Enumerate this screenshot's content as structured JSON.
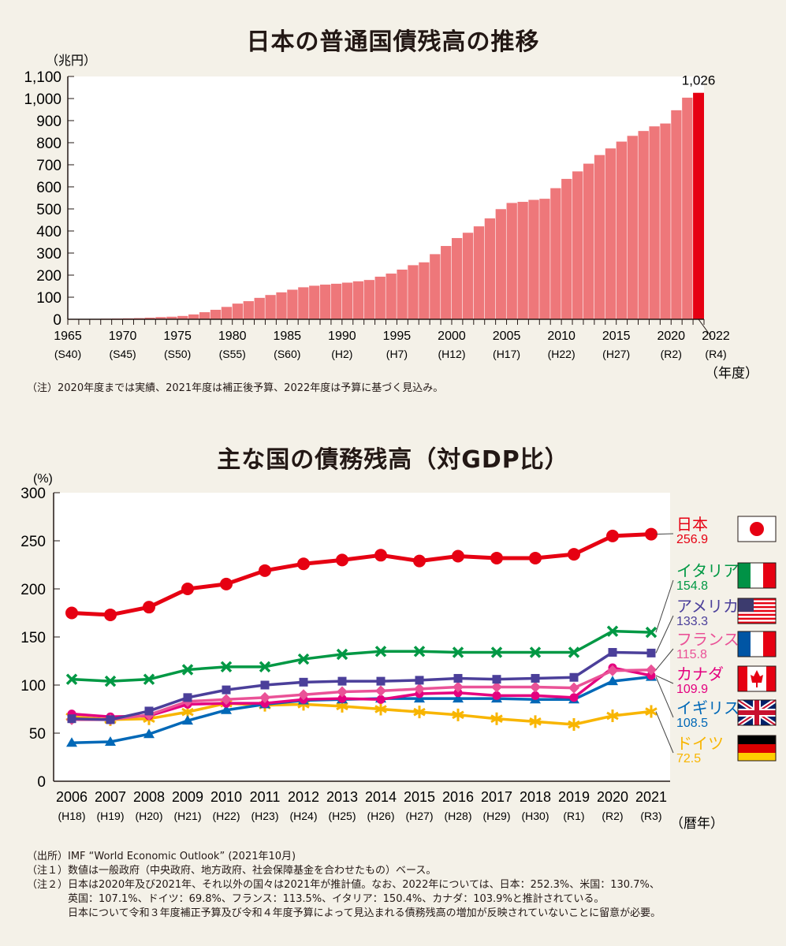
{
  "chart_data": [
    {
      "type": "bar",
      "title": "日本の普通国債残高の推移",
      "ylabel": "（兆円）",
      "xlabel": "（年度）",
      "ylim": [
        0,
        1100
      ],
      "yticks": [
        "0",
        "100",
        "200",
        "300",
        "400",
        "500",
        "600",
        "700",
        "800",
        "900",
        "1,000",
        "1,100"
      ],
      "x_tick_labels": [
        {
          "year": "1965",
          "era": "(S40)"
        },
        {
          "year": "1970",
          "era": "(S45)"
        },
        {
          "year": "1975",
          "era": "(S50)"
        },
        {
          "year": "1980",
          "era": "(S55)"
        },
        {
          "year": "1985",
          "era": "(S60)"
        },
        {
          "year": "1990",
          "era": "(H2)"
        },
        {
          "year": "1995",
          "era": "(H7)"
        },
        {
          "year": "2000",
          "era": "(H12)"
        },
        {
          "year": "2005",
          "era": "(H17)"
        },
        {
          "year": "2010",
          "era": "(H22)"
        },
        {
          "year": "2015",
          "era": "(H27)"
        },
        {
          "year": "2020",
          "era": "(R2)"
        },
        {
          "year": "2022",
          "era": "(R4)"
        }
      ],
      "categories": [
        1965,
        1966,
        1967,
        1968,
        1969,
        1970,
        1971,
        1972,
        1973,
        1974,
        1975,
        1976,
        1977,
        1978,
        1979,
        1980,
        1981,
        1982,
        1983,
        1984,
        1985,
        1986,
        1987,
        1988,
        1989,
        1990,
        1991,
        1992,
        1993,
        1994,
        1995,
        1996,
        1997,
        1998,
        1999,
        2000,
        2001,
        2002,
        2003,
        2004,
        2005,
        2006,
        2007,
        2008,
        2009,
        2010,
        2011,
        2012,
        2013,
        2014,
        2015,
        2016,
        2017,
        2018,
        2019,
        2020,
        2021,
        2022
      ],
      "values": [
        0.2,
        0.9,
        1.9,
        2.8,
        3.5,
        4.4,
        5.3,
        7.3,
        9.8,
        11.6,
        15,
        22,
        32,
        43,
        56,
        71,
        82,
        97,
        110,
        122,
        134,
        145,
        152,
        157,
        161,
        166,
        172,
        178,
        193,
        207,
        225,
        245,
        258,
        295,
        332,
        368,
        392,
        421,
        457,
        499,
        527,
        532,
        541,
        546,
        594,
        636,
        670,
        705,
        744,
        774,
        805,
        831,
        853,
        874,
        887,
        947,
        1004,
        1026
      ],
      "highlight": {
        "label": "1,026",
        "color": "#e60012"
      },
      "bar_color": "#ee777a",
      "note": "（注）2020年度までは実績、2021年度は補正後予算、2022年度は予算に基づく見込み。"
    },
    {
      "type": "line",
      "title": "主な国の債務残高（対GDP比）",
      "ylabel": "(%)",
      "xlabel": "（暦年）",
      "ylim": [
        0,
        300
      ],
      "yticks": [
        "0",
        "50",
        "100",
        "150",
        "200",
        "250",
        "300"
      ],
      "x": [
        "2006",
        "2007",
        "2008",
        "2009",
        "2010",
        "2011",
        "2012",
        "2013",
        "2014",
        "2015",
        "2016",
        "2017",
        "2018",
        "2019",
        "2020",
        "2021"
      ],
      "x_era": [
        "(H18)",
        "(H19)",
        "(H20)",
        "(H21)",
        "(H22)",
        "(H23)",
        "(H24)",
        "(H25)",
        "(H26)",
        "(H27)",
        "(H28)",
        "(H29)",
        "(H30)",
        "(R1)",
        "(R2)",
        "(R3)"
      ],
      "series": [
        {
          "name": "日本",
          "last_label": "256.9",
          "color": "#e60012",
          "marker": "circle",
          "flag": "japan",
          "values": [
            175,
            173,
            181,
            200,
            205,
            219,
            226,
            230,
            235,
            229,
            234,
            232,
            232,
            236,
            255,
            256.9
          ]
        },
        {
          "name": "イタリア",
          "last_label": "154.8",
          "color": "#009844",
          "marker": "x",
          "flag": "italy",
          "values": [
            106,
            104,
            106,
            116,
            119,
            119,
            127,
            132,
            135,
            135,
            134,
            134,
            134,
            134,
            156,
            154.8
          ]
        },
        {
          "name": "アメリカ",
          "last_label": "133.3",
          "color": "#4b3f9a",
          "marker": "square",
          "flag": "usa",
          "values": [
            65,
            64,
            73,
            87,
            95,
            100,
            103,
            104,
            104,
            105,
            107,
            106,
            107,
            108,
            134,
            133.3
          ]
        },
        {
          "name": "フランス",
          "last_label": "115.8",
          "color": "#ea5297",
          "marker": "diamond",
          "flag": "france",
          "values": [
            64,
            64,
            69,
            83,
            85,
            87,
            90,
            93,
            94,
            96,
            98,
            98,
            98,
            97,
            115,
            115.8
          ]
        },
        {
          "name": "カナダ",
          "last_label": "109.9",
          "color": "#e4007f",
          "marker": "circle-small",
          "flag": "canada",
          "values": [
            70,
            67,
            68,
            80,
            81,
            81,
            85,
            86,
            85,
            91,
            92,
            89,
            89,
            87,
            118,
            109.9
          ]
        },
        {
          "name": "イギリス",
          "last_label": "108.5",
          "color": "#0068b7",
          "marker": "triangle",
          "flag": "uk",
          "values": [
            40,
            41,
            49,
            63,
            74,
            80,
            84,
            85,
            86,
            86,
            86,
            86,
            85,
            85,
            104,
            108.5
          ]
        },
        {
          "name": "ドイツ",
          "last_label": "72.5",
          "color": "#f8b500",
          "marker": "asterisk",
          "flag": "germany",
          "values": [
            67,
            64,
            65,
            72,
            81,
            79,
            80,
            78,
            75,
            72,
            69,
            65,
            62,
            59,
            68,
            72.5
          ]
        }
      ]
    }
  ],
  "notes": [
    "（出所）IMF “World Economic Outlook” (2021年10月)",
    "（注１）数値は一般政府（中央政府、地方政府、社会保障基金を合わせたもの）ベース。",
    "（注２）日本は2020年及び2021年、それ以外の国々は2021年が推計値。なお、2022年については、日本：252.3%、米国：130.7%、",
    "　　　　英国：107.1%、ドイツ：69.8%、フランス：113.5%、イタリア：150.4%、カナダ：103.9%と推計されている。",
    "　　　　日本について令和３年度補正予算及び令和４年度予算によって見込まれる債務残高の増加が反映されていないことに留意が必要。"
  ]
}
